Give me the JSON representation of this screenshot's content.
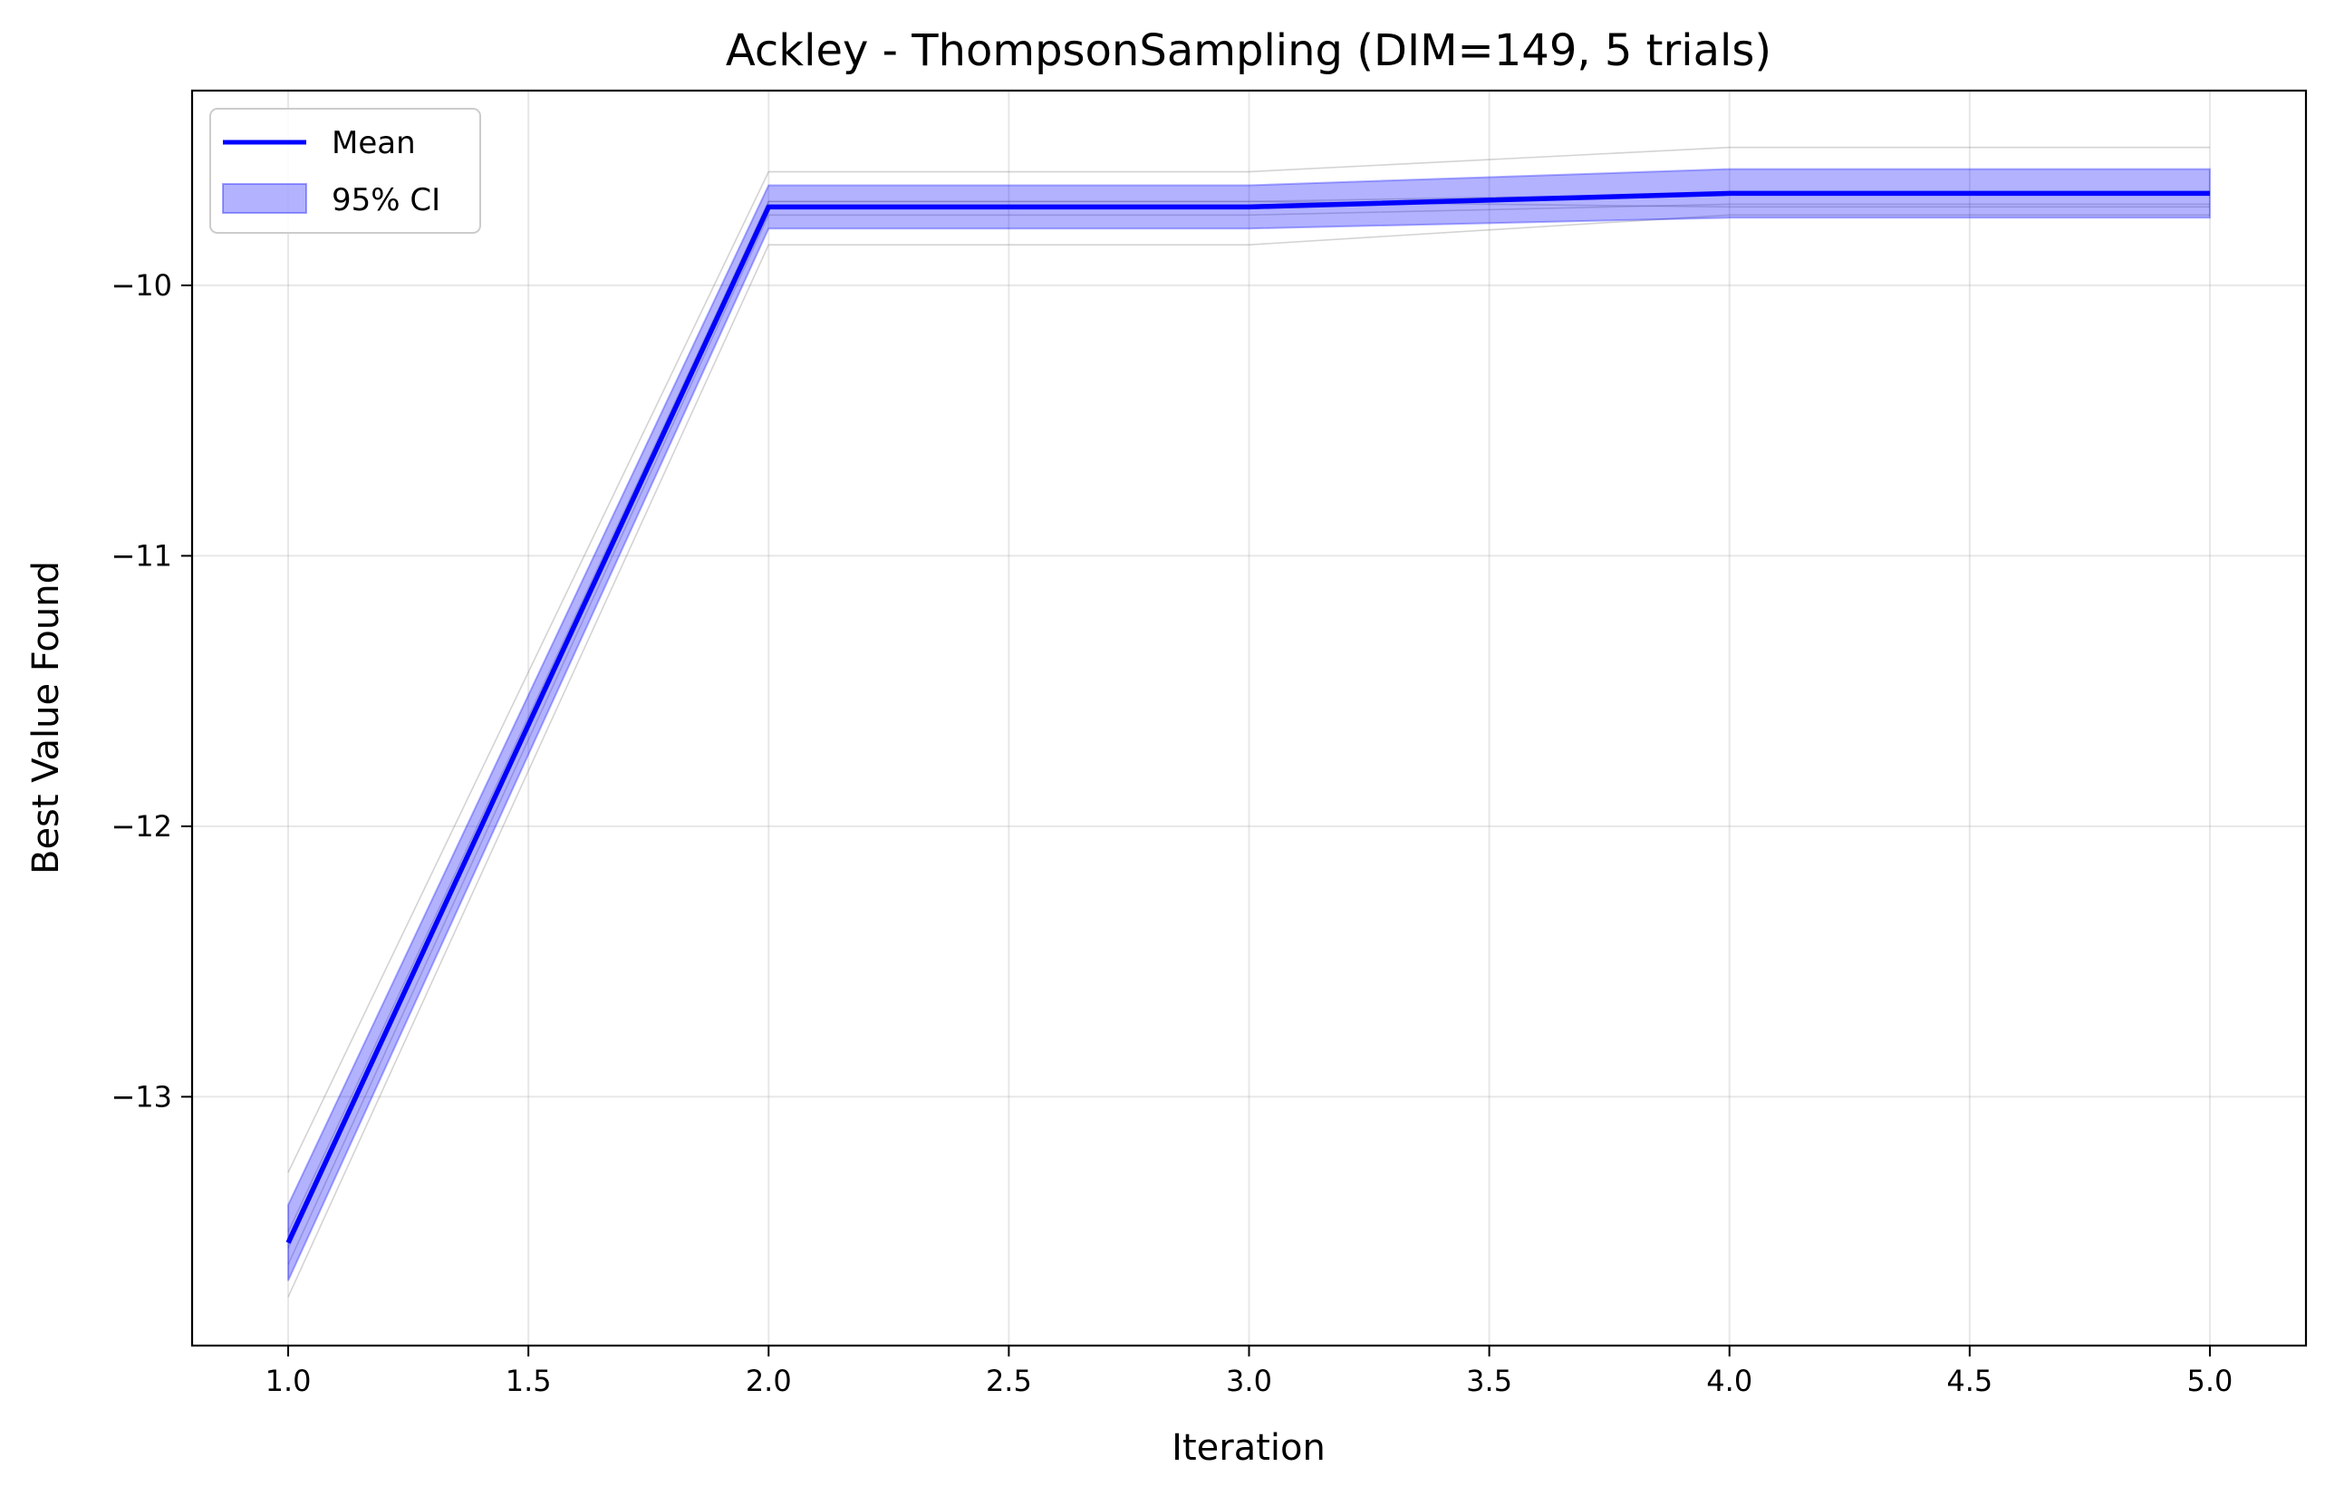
{
  "chart_data": {
    "type": "line",
    "title": "Ackley - ThompsonSampling (DIM=149, 5 trials)",
    "xlabel": "Iteration",
    "ylabel": "Best Value Found",
    "xlim": [
      0.8,
      5.2
    ],
    "ylim": [
      -13.92,
      -9.28
    ],
    "xticks": [
      1.0,
      1.5,
      2.0,
      2.5,
      3.0,
      3.5,
      4.0,
      4.5,
      5.0
    ],
    "xtick_labels": [
      "1.0",
      "1.5",
      "2.0",
      "2.5",
      "3.0",
      "3.5",
      "4.0",
      "4.5",
      "5.0"
    ],
    "yticks": [
      -13,
      -12,
      -11,
      -10
    ],
    "ytick_labels": [
      "−13",
      "−12",
      "−11",
      "−10"
    ],
    "grid": true,
    "legend_position": "top-left",
    "x": [
      1,
      2,
      3,
      4,
      5
    ],
    "series": [
      {
        "name": "Mean",
        "values": [
          -13.54,
          -9.71,
          -9.71,
          -9.66,
          -9.66
        ],
        "color": "#0000ff"
      }
    ],
    "confidence_band": {
      "name": "95% CI",
      "lower": [
        -13.68,
        -9.79,
        -9.79,
        -9.75,
        -9.75
      ],
      "upper": [
        -13.4,
        -9.63,
        -9.63,
        -9.57,
        -9.57
      ],
      "color": "#0000ff"
    },
    "trials": [
      [
        -13.28,
        -9.58,
        -9.58,
        -9.49,
        -9.49
      ],
      [
        -13.74,
        -9.85,
        -9.85,
        -9.74,
        -9.74
      ],
      [
        -13.5,
        -9.69,
        -9.69,
        -9.66,
        -9.66
      ],
      [
        -13.62,
        -9.74,
        -9.74,
        -9.7,
        -9.7
      ],
      [
        -13.56,
        -9.69,
        -9.69,
        -9.71,
        -9.71
      ]
    ]
  }
}
